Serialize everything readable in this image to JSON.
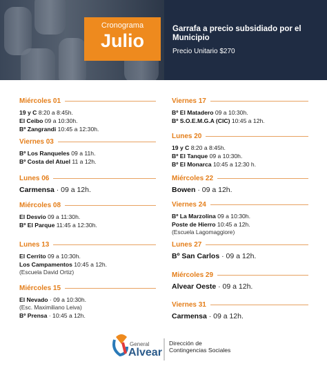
{
  "header": {
    "badge_small": "Cronograma",
    "badge_big": "Julio",
    "title": "Garrafa a precio subsidiado por el Municipio",
    "price": "Precio Unitario $270"
  },
  "schedule": {
    "left": [
      {
        "day": "Miércoles 01",
        "lines": [
          {
            "place": "19 y C",
            "time": "8:20 a 8:45h."
          },
          {
            "place": "El Ceibo",
            "time": "09 a 10:30h."
          },
          {
            "place": "Bº Zangrandi",
            "time": "10:45 a 12:30h."
          }
        ]
      },
      {
        "day": "Viernes 03",
        "lines": [
          {
            "place": "Bº Los Ranqueles",
            "time": "09 a 11h."
          },
          {
            "place": "Bº Costa del Atuel",
            "time": "11 a 12h."
          }
        ]
      },
      {
        "day": "Lunes 06",
        "lines": [
          {
            "place": "Carmensa",
            "time": "· 09 a 12h."
          }
        ]
      },
      {
        "day": "Miércoles 08",
        "lines": [
          {
            "place": "El Desvío",
            "time": "09 a 11:30h."
          },
          {
            "place": "Bº El Parque",
            "time": "11:45 a 12:30h."
          }
        ]
      },
      {
        "day": "Lunes 13",
        "lines": [
          {
            "place": "El Cerrito",
            "time": "09 a 10:30h."
          },
          {
            "place": "Los Campamentos",
            "time": "10:45 a 12h."
          },
          {
            "note": "(Escuela David Ortiz)"
          }
        ]
      },
      {
        "day": "Miércoles 15",
        "lines": [
          {
            "place": "El Nevado",
            "time": "· 09 a 10:30h."
          },
          {
            "note": "(Esc. Maximiliano Leiva)"
          },
          {
            "place": "Bº Prensa",
            "time": "· 10:45 a 12h."
          }
        ]
      }
    ],
    "right": [
      {
        "day": "Viernes 17",
        "lines": [
          {
            "place": "Bº El Matadero",
            "time": "09 a 10:30h."
          },
          {
            "place": "Bº S.O.E.M.G.A (CIC)",
            "time": "10:45 a 12h."
          }
        ]
      },
      {
        "day": "Lunes 20",
        "lines": [
          {
            "place": "19 y C",
            "time": "8:20 a 8:45h."
          },
          {
            "place": "Bº El Tanque",
            "time": "09 a 10:30h."
          },
          {
            "place": "Bº El Monarca",
            "time": "10:45 a 12:30 h."
          }
        ]
      },
      {
        "day": "Miércoles 22",
        "lines": [
          {
            "place": "Bowen",
            "time": "· 09 a 12h."
          }
        ]
      },
      {
        "day": "Viernes 24",
        "lines": [
          {
            "place": "Bº La Marzolina",
            "time": "09 a 10:30h."
          },
          {
            "place": "Poste de Hierro",
            "time": "10:45 a 12h."
          },
          {
            "note": "(Escuela Lagomaggiore)"
          }
        ]
      },
      {
        "day": "Lunes 27",
        "lines": [
          {
            "place": "Bº San Carlos",
            "time": "· 09 a 12h."
          }
        ]
      },
      {
        "day": "Miércoles 29",
        "lines": [
          {
            "place": "Alvear Oeste",
            "time": "· 09 a 12h."
          }
        ]
      },
      {
        "day": "Viernes 31",
        "lines": [
          {
            "place": "Carmensa",
            "time": "· 09 a 12h."
          }
        ]
      }
    ]
  },
  "footer": {
    "logo_small": "General",
    "logo_big": "Alvear",
    "org": "Dirección de Contingencias Sociales"
  }
}
